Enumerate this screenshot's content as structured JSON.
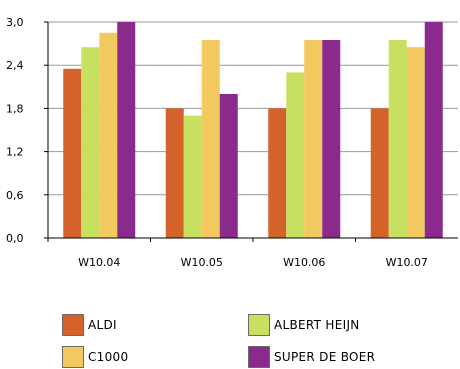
{
  "chart_data": {
    "type": "bar",
    "categories": [
      "W10.04",
      "W10.05",
      "W10.06",
      "W10.07"
    ],
    "series": [
      {
        "name": "ALDI",
        "color": "#d4622a",
        "values": [
          2.35,
          1.8,
          1.8,
          1.8
        ]
      },
      {
        "name": "ALBERT HEIJN",
        "color": "#c8e060",
        "values": [
          2.65,
          1.7,
          2.3,
          2.75
        ]
      },
      {
        "name": "C1000",
        "color": "#f2c95e",
        "values": [
          2.85,
          2.75,
          2.75,
          2.65
        ]
      },
      {
        "name": "SUPER DE BOER",
        "color": "#8a2a8c",
        "values": [
          3.0,
          2.0,
          2.75,
          3.0
        ]
      }
    ],
    "y_ticks": [
      "0,0",
      "0,6",
      "1,2",
      "1,8",
      "2,4",
      "3,0"
    ],
    "ylim": [
      0,
      3.0
    ],
    "grid": true,
    "legend_position": "bottom"
  }
}
